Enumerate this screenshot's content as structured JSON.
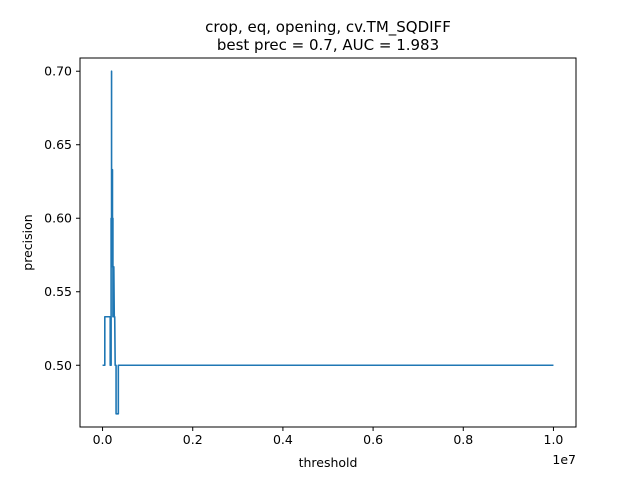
{
  "chart_data": {
    "type": "line",
    "title": "crop, eq, opening, cv.TM_SQDIFF",
    "subtitle": "best prec = 0.7, AUC = 1.983",
    "xlabel": "threshold",
    "ylabel": "precision",
    "x_offset_label": "1e7",
    "xlim": [
      -0.05,
      1.05
    ],
    "ylim": [
      0.458,
      0.709
    ],
    "x_scale": 10000000,
    "x_ticks": [
      0.0,
      0.2,
      0.4,
      0.6,
      0.8,
      1.0
    ],
    "x_tick_labels": [
      "0.0",
      "0.2",
      "0.4",
      "0.6",
      "0.8",
      "1.0"
    ],
    "y_ticks": [
      0.5,
      0.55,
      0.6,
      0.65,
      0.7
    ],
    "y_tick_labels": [
      "0.50",
      "0.55",
      "0.60",
      "0.65",
      "0.70"
    ],
    "grid": false,
    "colors": {
      "series": "#1f77b4"
    },
    "series": [
      {
        "points": [
          [
            0.0,
            0.5
          ],
          [
            0.005,
            0.5
          ],
          [
            0.005,
            0.533
          ],
          [
            0.017,
            0.533
          ],
          [
            0.017,
            0.5
          ],
          [
            0.017,
            0.533
          ],
          [
            0.017,
            0.533
          ],
          [
            0.017,
            0.5
          ],
          [
            0.019,
            0.5
          ],
          [
            0.019,
            0.533
          ],
          [
            0.019,
            0.533
          ],
          [
            0.019,
            0.567
          ],
          [
            0.019,
            0.6
          ],
          [
            0.019,
            0.567
          ],
          [
            0.02,
            0.567
          ],
          [
            0.02,
            0.633
          ],
          [
            0.02,
            0.7
          ],
          [
            0.02,
            0.667
          ],
          [
            0.02,
            0.633
          ],
          [
            0.021,
            0.6
          ],
          [
            0.021,
            0.567
          ],
          [
            0.021,
            0.6
          ],
          [
            0.022,
            0.567
          ],
          [
            0.022,
            0.633
          ],
          [
            0.022,
            0.6
          ],
          [
            0.022,
            0.567
          ],
          [
            0.023,
            0.6
          ],
          [
            0.023,
            0.567
          ],
          [
            0.023,
            0.533
          ],
          [
            0.024,
            0.533
          ],
          [
            0.024,
            0.567
          ],
          [
            0.025,
            0.533
          ],
          [
            0.025,
            0.567
          ],
          [
            0.026,
            0.533
          ],
          [
            0.027,
            0.533
          ],
          [
            0.028,
            0.5
          ],
          [
            0.029,
            0.5
          ],
          [
            0.03,
            0.5
          ],
          [
            0.03,
            0.467
          ],
          [
            0.035,
            0.467
          ],
          [
            0.035,
            0.5
          ],
          [
            0.1,
            0.5
          ],
          [
            0.2,
            0.5
          ],
          [
            0.4,
            0.5
          ],
          [
            0.6,
            0.5
          ],
          [
            0.8,
            0.5
          ],
          [
            1.0,
            0.5
          ]
        ]
      }
    ]
  }
}
